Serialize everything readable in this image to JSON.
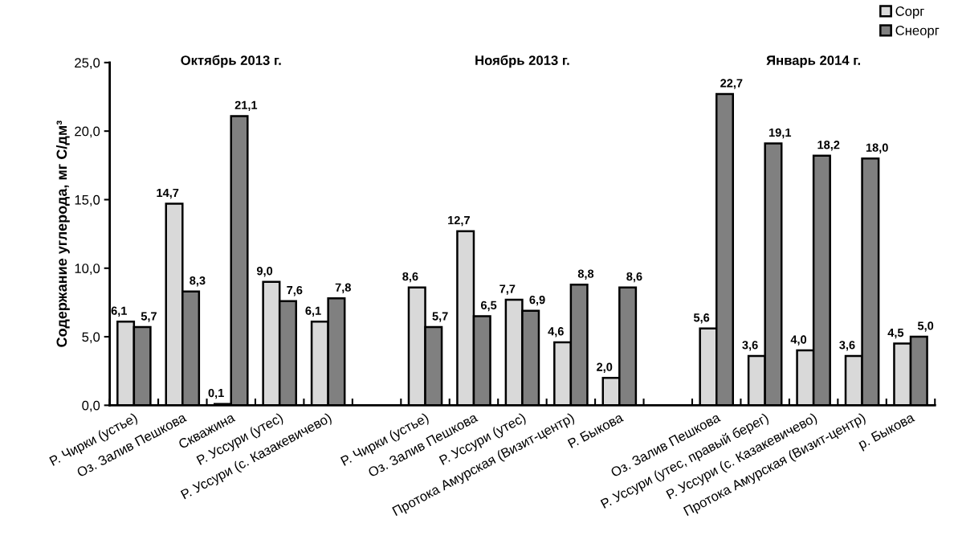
{
  "chart_data": {
    "type": "bar",
    "categories": [
      "Р. Чирки (устье)",
      "Оз. Залив Пешкова",
      "Скважина",
      "Р. Уссури (утес)",
      "Р. Уссури (с. Казакевичево)",
      null,
      "Р. Чирки (устье)",
      "Оз. Залив Пешкова",
      "Р. Уссури (утес)",
      "Протока Амурская (Визит-центр)",
      "Р. Быкова",
      null,
      "Оз. Залив Пешкова",
      "Р. Уссури (утес, правый берег)",
      "Р. Уссури (с. Казакевичево)",
      "Протока Амурская (Визит-центр)",
      "р. Быкова"
    ],
    "series": [
      {
        "name": "Сорг",
        "color": "#d9d9d9",
        "values": [
          6.1,
          14.7,
          0.1,
          9.0,
          6.1,
          null,
          8.6,
          12.7,
          7.7,
          4.6,
          2.0,
          null,
          5.6,
          3.6,
          4.0,
          3.6,
          4.5
        ],
        "value_labels": [
          "6,1",
          "14,7",
          "0,1",
          "9,0",
          "6,1",
          null,
          "8,6",
          "12,7",
          "7,7",
          "4,6",
          "2,0",
          null,
          "5,6",
          "3,6",
          "4,0",
          "3,6",
          "4,5"
        ]
      },
      {
        "name": "Снеорг",
        "color": "#808080",
        "values": [
          5.7,
          8.3,
          21.1,
          7.6,
          7.8,
          null,
          5.7,
          6.5,
          6.9,
          8.8,
          8.6,
          null,
          22.7,
          19.1,
          18.2,
          18.0,
          5.0
        ],
        "value_labels": [
          "5,7",
          "8,3",
          "21,1",
          "7,6",
          "7,8",
          null,
          "5,7",
          "6,5",
          "6,9",
          "8,8",
          "8,6",
          null,
          "22,7",
          "19,1",
          "18,2",
          "18,0",
          "5,0"
        ]
      }
    ],
    "ylabel": "Содержание углерода, мг С/дм³",
    "ylim": [
      0,
      25
    ],
    "yticks": [
      {
        "value": 0,
        "label": "0,0"
      },
      {
        "value": 5,
        "label": "5,0"
      },
      {
        "value": 10,
        "label": "10,0"
      },
      {
        "value": 15,
        "label": "15,0"
      },
      {
        "value": 20,
        "label": "20,0"
      },
      {
        "value": 25,
        "label": "25,0"
      }
    ],
    "annotations": [
      "Октябрь 2013 г.",
      "Ноябрь 2013 г.",
      "Январь 2014 г."
    ],
    "legend": "top right",
    "grid": false
  }
}
